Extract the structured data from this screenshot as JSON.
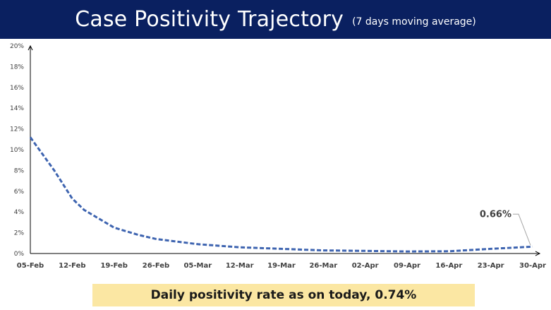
{
  "header": {
    "title": "Case Positivity Trajectory",
    "subtitle": "(7 days moving average)",
    "background": "#0a2060"
  },
  "chart_data": {
    "type": "line",
    "title": "Case Positivity Trajectory",
    "subtitle": "(7 days moving average)",
    "xlabel": "",
    "ylabel": "",
    "ylim": [
      0,
      20
    ],
    "y_ticks": [
      "0%",
      "2%",
      "4%",
      "6%",
      "8%",
      "10%",
      "12%",
      "14%",
      "16%",
      "18%",
      "20%"
    ],
    "x_tick_labels": [
      "05-Feb",
      "12-Feb",
      "19-Feb",
      "26-Feb",
      "05-Mar",
      "12-Mar",
      "19-Mar",
      "26-Mar",
      "02-Apr",
      "09-Apr",
      "16-Apr",
      "23-Apr",
      "30-Apr"
    ],
    "series": [
      {
        "color": "#3e64b0",
        "style": "dashed",
        "x": [
          "05-Feb",
          "09-Feb",
          "12-Feb",
          "14-Feb",
          "19-Feb",
          "23-Feb",
          "26-Feb",
          "05-Mar",
          "12-Mar",
          "19-Mar",
          "26-Mar",
          "02-Apr",
          "09-Apr",
          "16-Apr",
          "23-Apr",
          "30-Apr"
        ],
        "values": [
          11.2,
          8.0,
          5.3,
          4.2,
          2.5,
          1.8,
          1.4,
          0.9,
          0.6,
          0.45,
          0.3,
          0.25,
          0.2,
          0.22,
          0.45,
          0.66
        ]
      }
    ],
    "callout": {
      "label": "0.66%",
      "x": "30-Apr",
      "value": 0.66
    },
    "grid": false,
    "legend": "none"
  },
  "banner": {
    "text": "Daily positivity rate as on today, 0.74%",
    "background": "#fbe7a3"
  }
}
